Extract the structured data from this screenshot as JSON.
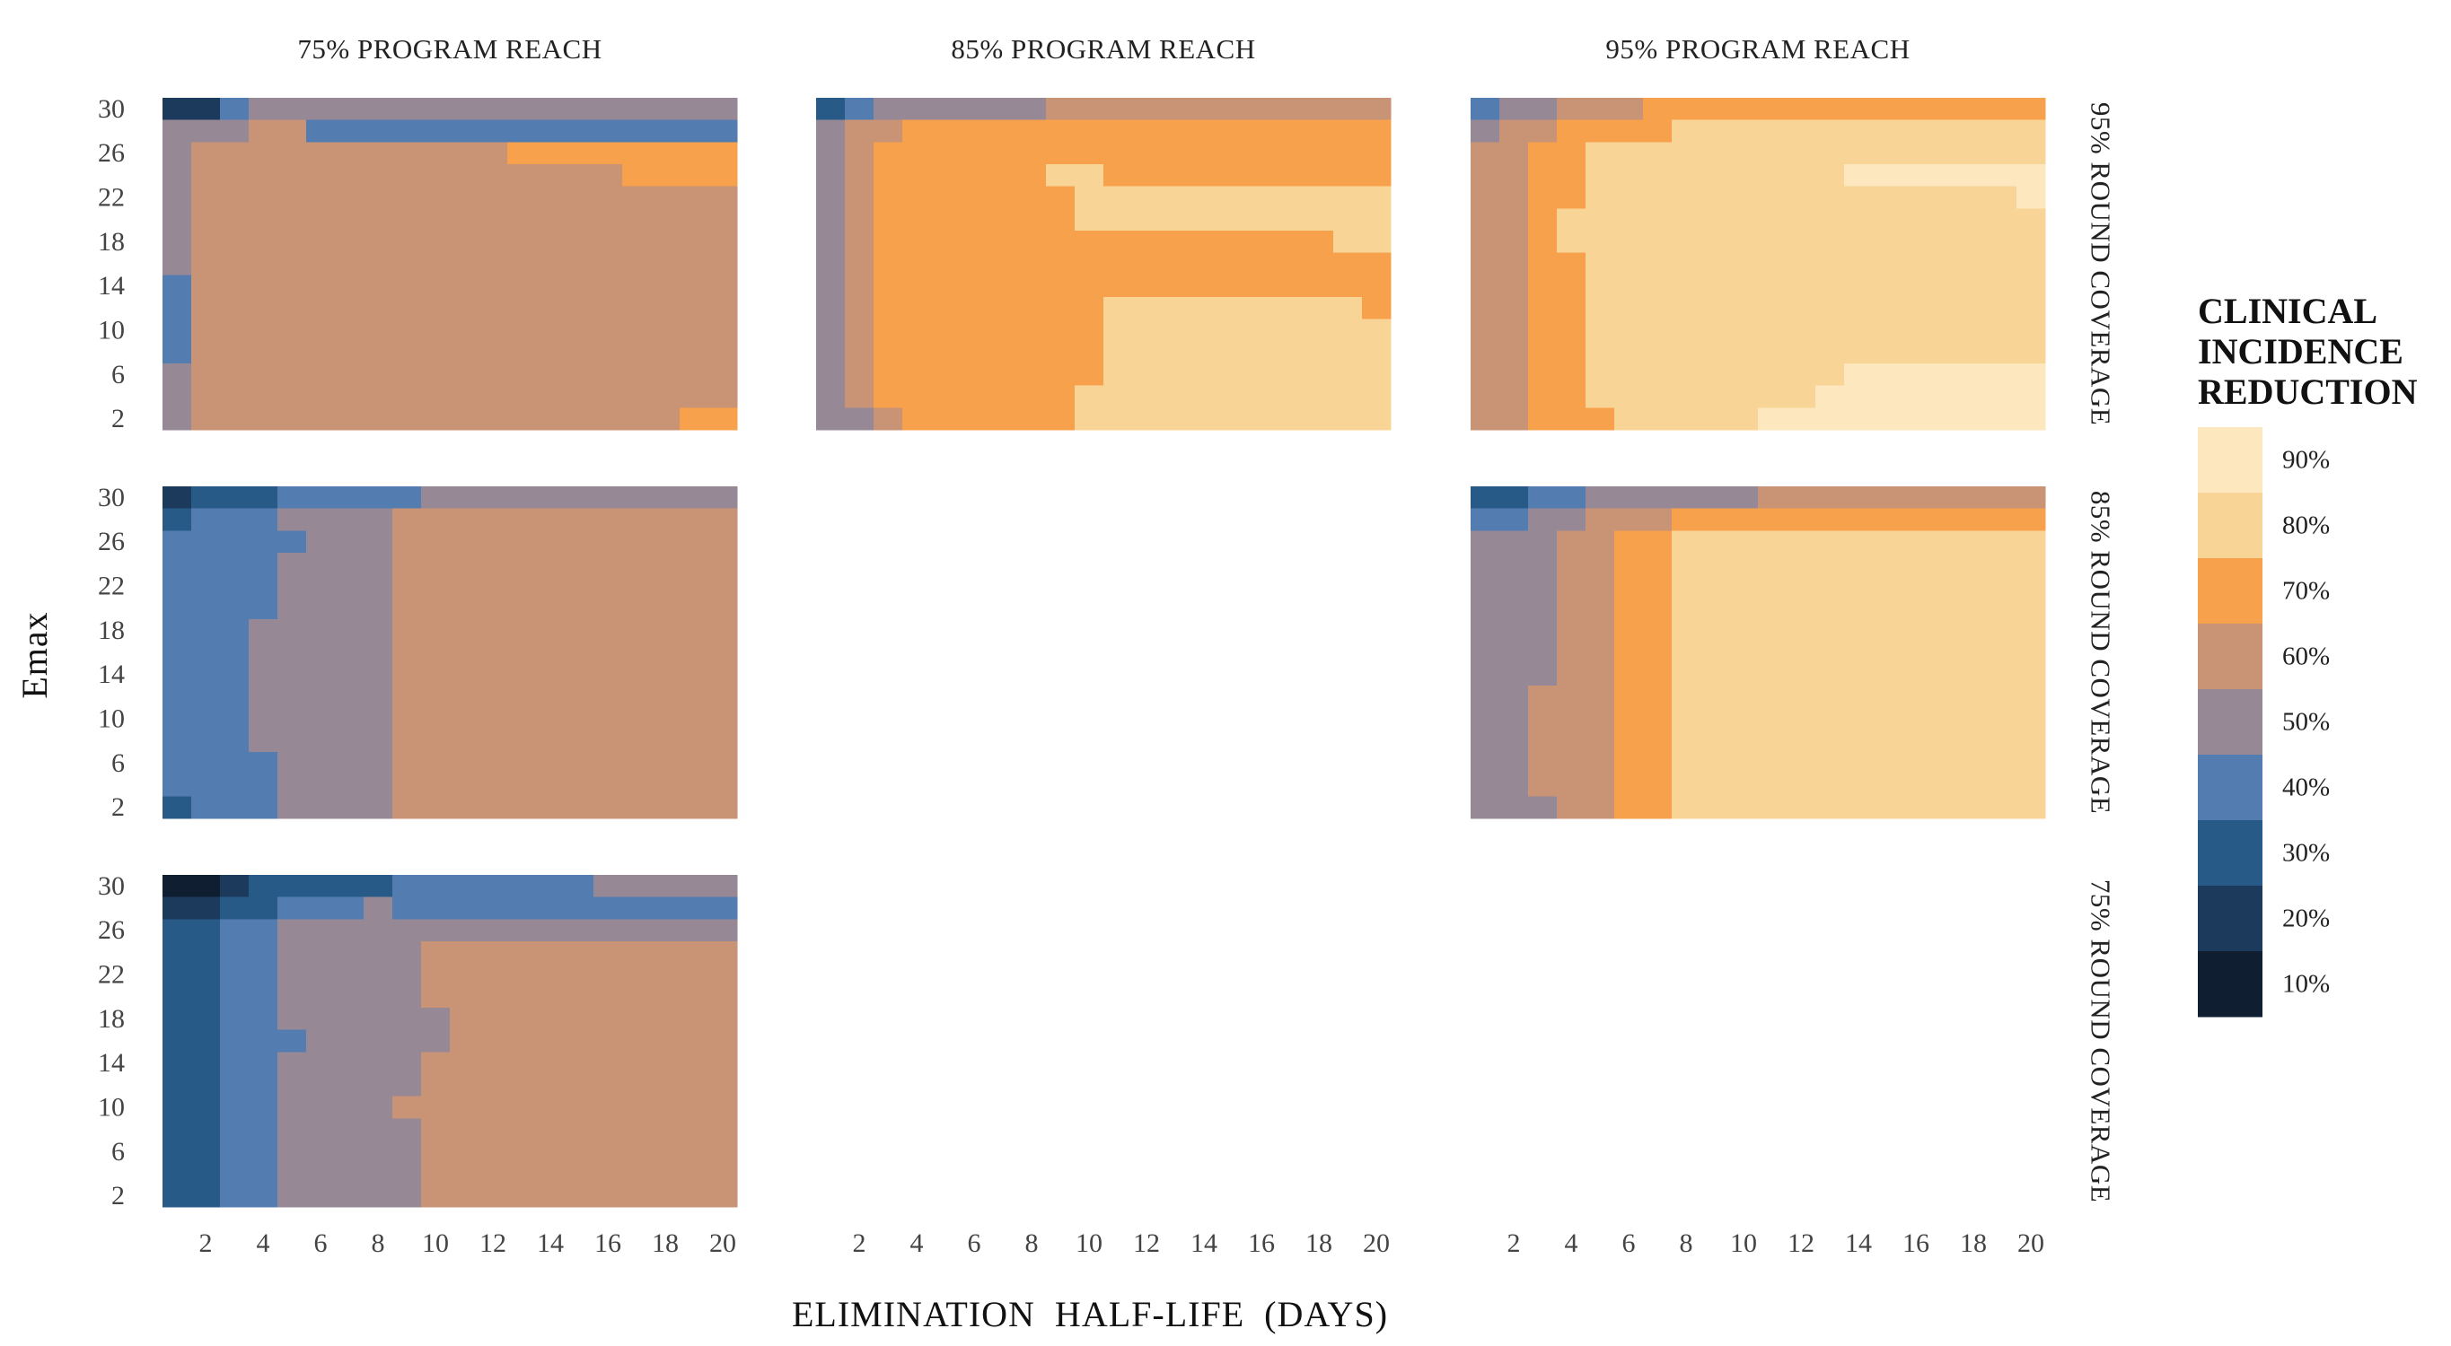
{
  "chart_data": {
    "type": "heatmap",
    "facet_type": "grid",
    "xlabel": "ELIMINATION  HALF-LIFE  (DAYS)",
    "ylabel": "Emax",
    "x_values": [
      1,
      2,
      3,
      4,
      5,
      6,
      7,
      8,
      9,
      10,
      11,
      12,
      13,
      14,
      15,
      16,
      17,
      18,
      19,
      20
    ],
    "y_values": [
      2,
      4,
      6,
      8,
      10,
      12,
      14,
      16,
      18,
      20,
      22,
      24,
      26,
      28,
      30
    ],
    "x_ticks": [
      "2",
      "4",
      "6",
      "8",
      "10",
      "12",
      "14",
      "16",
      "18",
      "20"
    ],
    "y_ticks": [
      "2",
      "6",
      "10",
      "14",
      "18",
      "22",
      "26",
      "30"
    ],
    "columns": [
      "75% PROGRAM REACH",
      "85% PROGRAM REACH",
      "95% PROGRAM REACH"
    ],
    "rows": [
      "95% ROUND COVERAGE",
      "85% ROUND COVERAGE",
      "75% ROUND COVERAGE"
    ],
    "legend": {
      "title_lines": [
        "CLINICAL",
        "INCIDENCE",
        "REDUCTION"
      ],
      "levels": [
        {
          "label": "90%",
          "color": "#FDE7BE"
        },
        {
          "label": "80%",
          "color": "#F8D596"
        },
        {
          "label": "70%",
          "color": "#F7A14C"
        },
        {
          "label": "60%",
          "color": "#C99375"
        },
        {
          "label": "50%",
          "color": "#978896"
        },
        {
          "label": "40%",
          "color": "#537DB0"
        },
        {
          "label": "30%",
          "color": "#285A88"
        },
        {
          "label": "20%",
          "color": "#1C3A5C"
        },
        {
          "label": "10%",
          "color": "#101E31"
        }
      ]
    },
    "panels": [
      {
        "row": "95% ROUND COVERAGE",
        "column": "75% PROGRAM REACH",
        "grid": [
          "77544444444444444444",
          "44433555555555555555",
          "43333333333322222222",
          "43333333333333332222",
          "43333333333333333333",
          "43333333333333333333",
          "43333333333333333333",
          "43333333333333333333",
          "53333333333333333333",
          "53333333333333333333",
          "53333333333333333333",
          "53333333333333333333",
          "43333333333333333333",
          "43333333333333333333",
          "43333333333333333322"
        ]
      },
      {
        "row": "95% ROUND COVERAGE",
        "column": "85% PROGRAM REACH",
        "grid": [
          "65444444333333333333",
          "43322222222222222222",
          "43222222222222222222",
          "43222222112222222222",
          "43222222211111111111",
          "43222222211111111111",
          "43222222222222222211",
          "43222222222222222222",
          "43222222222222222222",
          "43222222221111111112",
          "43222222221111111111",
          "43222222221111111111",
          "43222222221111111111",
          "43222222211111111111",
          "44322222211111111111"
        ]
      },
      {
        "row": "95% ROUND COVERAGE",
        "column": "95% PROGRAM REACH",
        "grid": [
          "54433322222222222222",
          "43322221111111111111",
          "33221111111111111111",
          "33221111111110000000",
          "33221111111111111110",
          "33211111111111111111",
          "33211111111111111111",
          "33221111111111111111",
          "33221111111111111111",
          "33221111111111111111",
          "33221111111111111111",
          "33221111111111111111",
          "33221111111110000000",
          "33221111111100000000",
          "33222111110000000000"
        ]
      },
      {
        "row": "85% ROUND COVERAGE",
        "column": "75% PROGRAM REACH",
        "grid": [
          "76665555544444444444",
          "65554444333333333333",
          "55555444333333333333",
          "55554444333333333333",
          "55554444333333333333",
          "55554444333333333333",
          "55544444333333333333",
          "55544444333333333333",
          "55544444333333333333",
          "55544444333333333333",
          "55544444333333333333",
          "55544444333333333333",
          "55554444333333333333",
          "55554444333333333333",
          "65554444333333333333"
        ]
      },
      {
        "row": "85% ROUND COVERAGE",
        "column": "95% PROGRAM REACH",
        "grid": [
          "66554444443333333333",
          "55443332222222222222",
          "44433221111111111111",
          "44433221111111111111",
          "44433221111111111111",
          "44433221111111111111",
          "44433221111111111111",
          "44433221111111111111",
          "44433221111111111111",
          "44333221111111111111",
          "44333221111111111111",
          "44333221111111111111",
          "44333221111111111111",
          "44333221111111111111",
          "44433221111111111111"
        ]
      },
      {
        "row": "75% ROUND COVERAGE",
        "column": "75% PROGRAM REACH",
        "grid": [
          "88766666555555544444",
          "77665554555555555555",
          "66554444444444444444",
          "66554444433333333333",
          "66554444433333333333",
          "66554444433333333333",
          "66554444443333333333",
          "66555444443333333333",
          "66554444433333333333",
          "66554444433333333333",
          "66554444333333333333",
          "66554444433333333333",
          "66554444433333333333",
          "66554444433333333333",
          "66554444433333333333"
        ]
      }
    ]
  }
}
